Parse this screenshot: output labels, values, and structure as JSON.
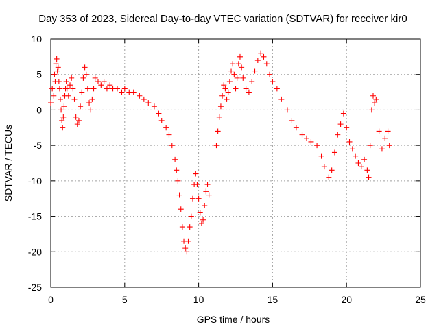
{
  "chart_data": {
    "type": "scatter",
    "title": "Day 353 of 2023, Sidereal Day-to-day VTEC variation (SDTVAR) for receiver kir0",
    "xlabel": "GPS time / hours",
    "ylabel": "SDTVAR / TECUs",
    "xlim": [
      0,
      25
    ],
    "ylim": [
      -25,
      10
    ],
    "xticks": [
      0,
      5,
      10,
      15,
      20,
      25
    ],
    "yticks": [
      -25,
      -20,
      -15,
      -10,
      -5,
      0,
      5,
      10
    ],
    "grid": true,
    "marker": "+",
    "color": "#ff0000",
    "series": [
      {
        "name": "kir0",
        "points": [
          [
            0.0,
            1.0
          ],
          [
            0.1,
            3.0
          ],
          [
            0.2,
            2.0
          ],
          [
            0.25,
            5.0
          ],
          [
            0.3,
            4.0
          ],
          [
            0.35,
            6.5
          ],
          [
            0.4,
            7.2
          ],
          [
            0.45,
            5.5
          ],
          [
            0.5,
            6.0
          ],
          [
            0.55,
            4.0
          ],
          [
            0.6,
            3.0
          ],
          [
            0.65,
            1.5
          ],
          [
            0.7,
            0.0
          ],
          [
            0.75,
            -1.5
          ],
          [
            0.8,
            -2.5
          ],
          [
            0.85,
            -1.0
          ],
          [
            0.9,
            0.5
          ],
          [
            0.95,
            2.0
          ],
          [
            1.0,
            3.0
          ],
          [
            1.05,
            4.0
          ],
          [
            1.1,
            3.0
          ],
          [
            1.2,
            2.0
          ],
          [
            1.3,
            3.5
          ],
          [
            1.4,
            4.5
          ],
          [
            1.5,
            3.0
          ],
          [
            1.6,
            1.5
          ],
          [
            1.7,
            -1.0
          ],
          [
            1.8,
            -2.0
          ],
          [
            1.9,
            -1.5
          ],
          [
            2.0,
            0.5
          ],
          [
            2.1,
            2.5
          ],
          [
            2.2,
            4.5
          ],
          [
            2.3,
            6.0
          ],
          [
            2.4,
            5.0
          ],
          [
            2.5,
            3.0
          ],
          [
            2.6,
            1.0
          ],
          [
            2.7,
            0.0
          ],
          [
            2.8,
            1.5
          ],
          [
            2.9,
            3.0
          ],
          [
            3.0,
            4.5
          ],
          [
            3.2,
            4.0
          ],
          [
            3.4,
            3.5
          ],
          [
            3.6,
            4.0
          ],
          [
            3.8,
            3.0
          ],
          [
            4.0,
            3.5
          ],
          [
            4.2,
            3.0
          ],
          [
            4.5,
            3.0
          ],
          [
            4.8,
            2.5
          ],
          [
            5.0,
            3.0
          ],
          [
            5.3,
            2.5
          ],
          [
            5.6,
            2.5
          ],
          [
            6.0,
            2.0
          ],
          [
            6.3,
            1.5
          ],
          [
            6.6,
            1.0
          ],
          [
            7.0,
            0.5
          ],
          [
            7.3,
            -0.5
          ],
          [
            7.5,
            -1.5
          ],
          [
            7.8,
            -2.5
          ],
          [
            8.0,
            -3.5
          ],
          [
            8.2,
            -5.0
          ],
          [
            8.4,
            -7.0
          ],
          [
            8.5,
            -8.5
          ],
          [
            8.6,
            -10.0
          ],
          [
            8.7,
            -12.0
          ],
          [
            8.8,
            -14.0
          ],
          [
            8.9,
            -16.5
          ],
          [
            9.0,
            -18.5
          ],
          [
            9.1,
            -19.5
          ],
          [
            9.2,
            -20.0
          ],
          [
            9.3,
            -18.5
          ],
          [
            9.4,
            -16.5
          ],
          [
            9.5,
            -15.0
          ],
          [
            9.6,
            -12.5
          ],
          [
            9.7,
            -10.5
          ],
          [
            9.8,
            -9.0
          ],
          [
            9.9,
            -10.5
          ],
          [
            10.0,
            -12.5
          ],
          [
            10.1,
            -14.5
          ],
          [
            10.2,
            -16.0
          ],
          [
            10.3,
            -15.5
          ],
          [
            10.4,
            -13.5
          ],
          [
            10.5,
            -11.5
          ],
          [
            10.6,
            -10.5
          ],
          [
            10.7,
            -12.0
          ],
          [
            11.2,
            -5.0
          ],
          [
            11.3,
            -3.0
          ],
          [
            11.4,
            -1.0
          ],
          [
            11.5,
            0.5
          ],
          [
            11.6,
            2.0
          ],
          [
            11.7,
            3.5
          ],
          [
            11.8,
            3.0
          ],
          [
            11.9,
            1.5
          ],
          [
            12.0,
            2.5
          ],
          [
            12.1,
            4.0
          ],
          [
            12.2,
            5.5
          ],
          [
            12.3,
            6.5
          ],
          [
            12.4,
            5.0
          ],
          [
            12.5,
            3.0
          ],
          [
            12.6,
            4.5
          ],
          [
            12.7,
            6.5
          ],
          [
            12.8,
            7.5
          ],
          [
            12.9,
            6.0
          ],
          [
            13.0,
            4.5
          ],
          [
            13.2,
            3.0
          ],
          [
            13.4,
            2.5
          ],
          [
            13.6,
            4.0
          ],
          [
            13.8,
            5.5
          ],
          [
            14.0,
            7.0
          ],
          [
            14.2,
            8.0
          ],
          [
            14.4,
            7.5
          ],
          [
            14.6,
            6.5
          ],
          [
            14.8,
            5.0
          ],
          [
            15.0,
            4.0
          ],
          [
            15.3,
            3.0
          ],
          [
            15.6,
            1.5
          ],
          [
            16.0,
            0.0
          ],
          [
            16.3,
            -1.5
          ],
          [
            16.6,
            -2.5
          ],
          [
            17.0,
            -3.5
          ],
          [
            17.3,
            -4.0
          ],
          [
            17.6,
            -4.5
          ],
          [
            18.0,
            -5.0
          ],
          [
            18.3,
            -6.5
          ],
          [
            18.5,
            -8.0
          ],
          [
            18.8,
            -9.5
          ],
          [
            19.0,
            -8.5
          ],
          [
            19.2,
            -6.0
          ],
          [
            19.4,
            -3.5
          ],
          [
            19.6,
            -2.0
          ],
          [
            19.8,
            -0.5
          ],
          [
            20.0,
            -2.5
          ],
          [
            20.2,
            -4.5
          ],
          [
            20.4,
            -5.5
          ],
          [
            20.6,
            -6.5
          ],
          [
            20.8,
            -7.5
          ],
          [
            21.0,
            -8.0
          ],
          [
            21.2,
            -7.0
          ],
          [
            21.4,
            -8.5
          ],
          [
            21.5,
            -9.5
          ],
          [
            21.6,
            -5.0
          ],
          [
            21.7,
            0.0
          ],
          [
            21.8,
            2.0
          ],
          [
            21.9,
            1.0
          ],
          [
            22.0,
            1.5
          ],
          [
            22.2,
            -3.0
          ],
          [
            22.4,
            -5.5
          ],
          [
            22.6,
            -4.0
          ],
          [
            22.8,
            -3.0
          ],
          [
            22.9,
            -5.0
          ]
        ]
      }
    ]
  }
}
